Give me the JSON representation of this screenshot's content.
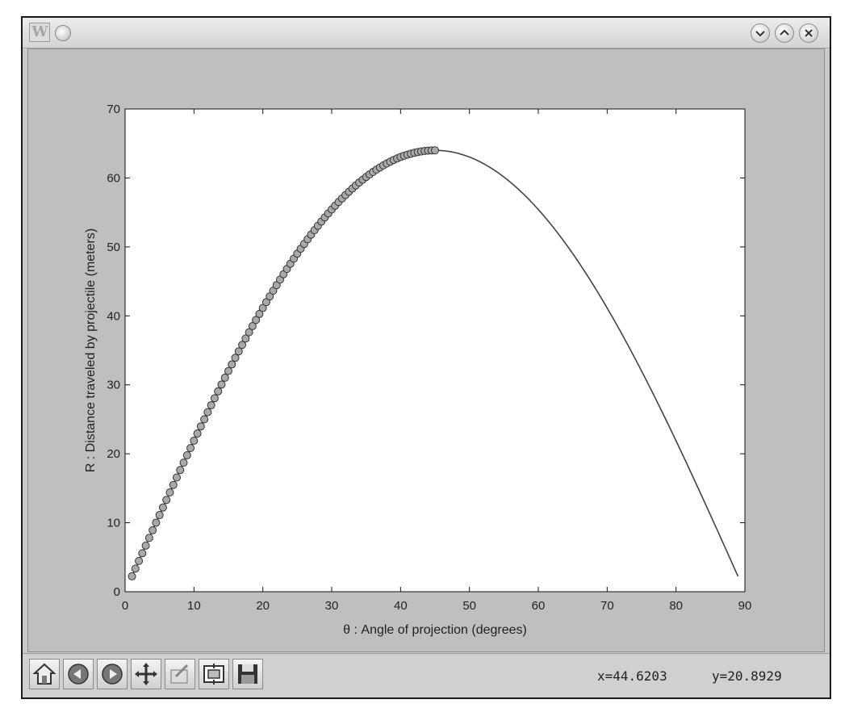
{
  "window": {
    "app_icon_text": "W",
    "buttons": [
      "minimize",
      "maximize",
      "close"
    ]
  },
  "toolbar": {
    "buttons": [
      "home-icon",
      "back-icon",
      "forward-icon",
      "pan-icon",
      "zoom-rect-icon",
      "configure-subplots-icon",
      "save-icon"
    ],
    "x_readout": "x=44.6203",
    "y_readout": "y=20.8929"
  },
  "chart_data": {
    "type": "line",
    "xlabel": "θ : Angle of projection (degrees)",
    "ylabel": "R : Distance traveled by projectile (meters)",
    "xlim": [
      0,
      90
    ],
    "ylim": [
      0,
      70
    ],
    "xticks": [
      0,
      10,
      20,
      30,
      40,
      50,
      60,
      70,
      80,
      90
    ],
    "yticks": [
      0,
      10,
      20,
      30,
      40,
      50,
      60,
      70
    ],
    "grid": false,
    "curve": {
      "description": "R = v^2 sin(2θ)/g with maximum R ≈ 64 at θ = 45",
      "v_squared_over_g": 64,
      "theta_start": 1,
      "theta_end": 89,
      "color": "#444444"
    },
    "markers": {
      "theta_start": 1,
      "theta_end": 45,
      "marker_fill": "#a9a9a9",
      "marker_edge": "#333333"
    }
  }
}
